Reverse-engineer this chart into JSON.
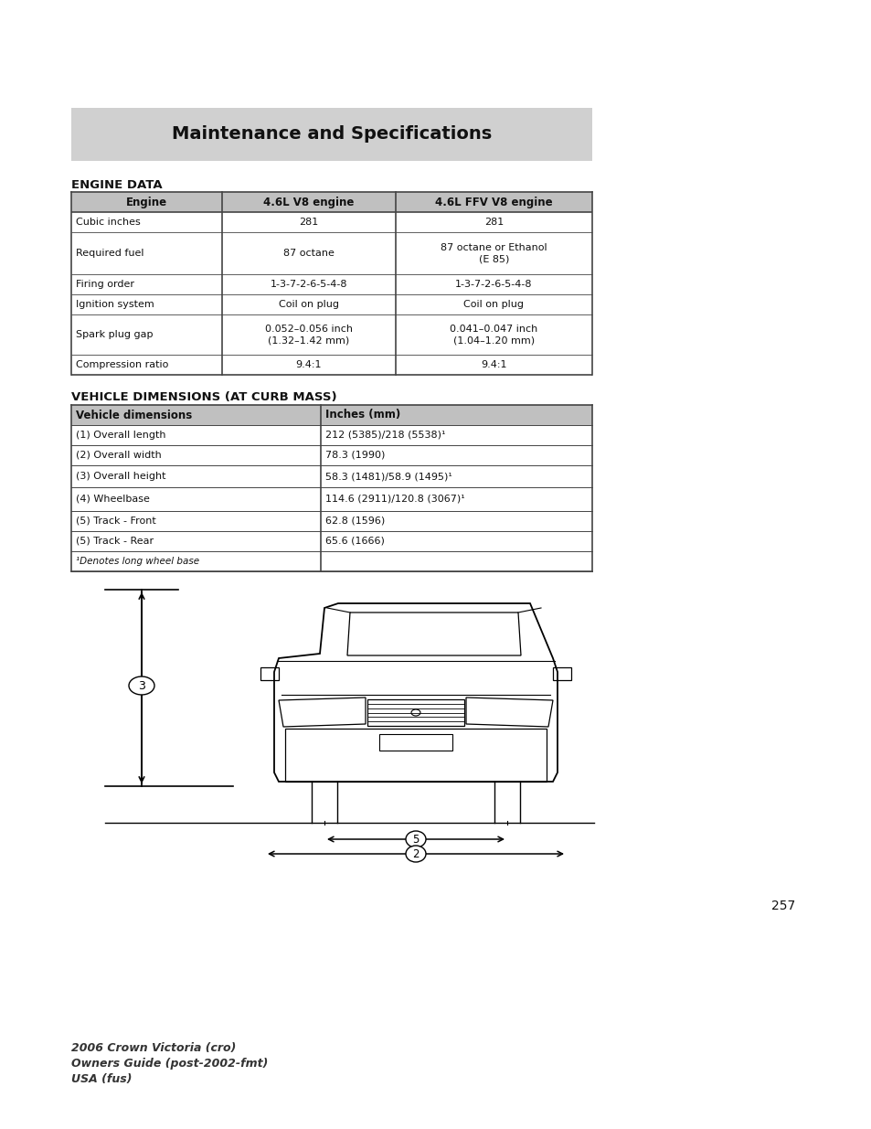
{
  "page_title": "Maintenance and Specifications",
  "title_bg_color": "#d0d0d0",
  "section1_title": "ENGINE DATA",
  "engine_table_headers": [
    "Engine",
    "4.6L V8 engine",
    "4.6L FFV V8 engine"
  ],
  "engine_table_rows": [
    [
      "Cubic inches",
      "281",
      "281"
    ],
    [
      "Required fuel",
      "87 octane",
      "87 octane or Ethanol\n(E 85)"
    ],
    [
      "Firing order",
      "1-3-7-2-6-5-4-8",
      "1-3-7-2-6-5-4-8"
    ],
    [
      "Ignition system",
      "Coil on plug",
      "Coil on plug"
    ],
    [
      "Spark plug gap",
      "0.052–0.056 inch\n(1.32–1.42 mm)",
      "0.041–0.047 inch\n(1.04–1.20 mm)"
    ],
    [
      "Compression ratio",
      "9.4:1",
      "9.4:1"
    ]
  ],
  "section2_title": "VEHICLE DIMENSIONS (AT CURB MASS)",
  "dim_table_headers": [
    "Vehicle dimensions",
    "Inches (mm)"
  ],
  "dim_table_rows": [
    [
      "(1) Overall length",
      "212 (5385)/218 (5538)¹"
    ],
    [
      "(2) Overall width",
      "78.3 (1990)"
    ],
    [
      "(3) Overall height",
      "58.3 (1481)/58.9 (1495)¹"
    ],
    [
      "(4) Wheelbase",
      "114.6 (2911)/120.8 (3067)¹"
    ],
    [
      "(5) Track - Front",
      "62.8 (1596)"
    ],
    [
      "(5) Track - Rear",
      "65.6 (1666)"
    ],
    [
      "¹Denotes long wheel base",
      ""
    ]
  ],
  "footer_line1": "2006 Crown Victoria (cro)",
  "footer_line2": "Owners Guide (post-2002-fmt)",
  "footer_line3": "USA (fus)",
  "page_number": "257",
  "bg_color": "#ffffff",
  "header_row_color": "#c0c0c0",
  "table_border_color": "#444444",
  "text_color": "#111111"
}
